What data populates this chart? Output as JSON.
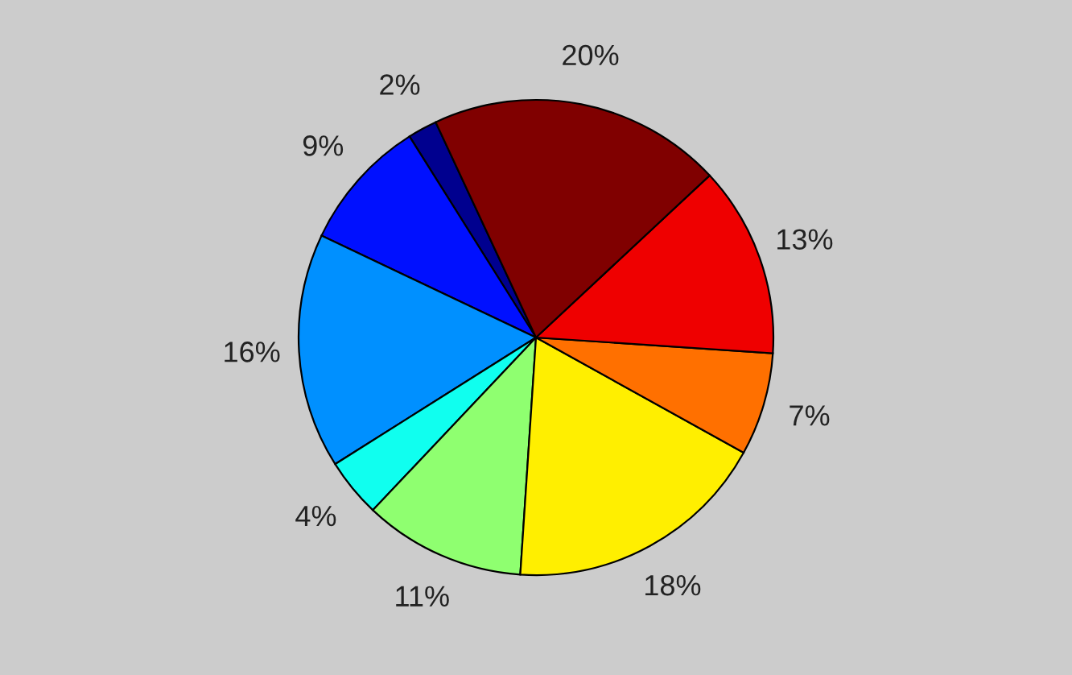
{
  "chart_data": {
    "type": "pie",
    "categories": [
      null,
      null,
      null,
      null,
      null,
      null,
      null,
      null,
      null
    ],
    "values": [
      2,
      9,
      16,
      4,
      11,
      18,
      7,
      13,
      20
    ],
    "colors": [
      "#00008f",
      "#0010ff",
      "#0090ff",
      "#10ffef",
      "#8fff70",
      "#ffef00",
      "#ff7000",
      "#ef0000",
      "#800000"
    ],
    "value_labels": [
      "2%",
      "9%",
      "16%",
      "4%",
      "11%",
      "18%",
      "7%",
      "13%",
      "20%"
    ]
  }
}
